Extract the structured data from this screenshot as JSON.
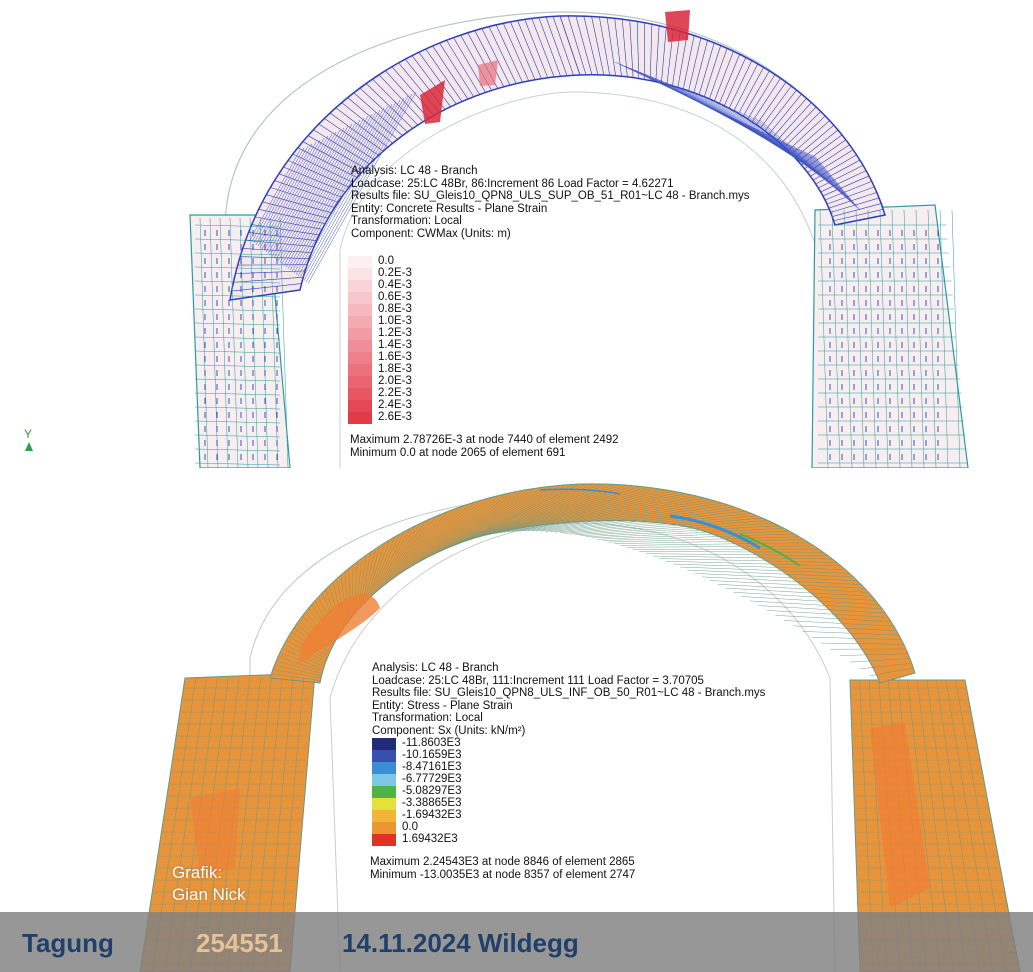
{
  "top_plot": {
    "info": [
      "Analysis: LC 48 - Branch",
      "Loadcase: 25:LC 48Br, 86:Increment 86 Load Factor = 4.62271",
      "Results file: SU_Gleis10_QPN8_ULS_SUP_OB_51_R01~LC 48 - Branch.mys",
      "Entity: Concrete Results - Plane Strain",
      "Transformation: Local",
      "Component: CWMax (Units: m)"
    ],
    "legend": [
      {
        "label": "0.0",
        "color": "#fdf0f1"
      },
      {
        "label": "0.2E-3",
        "color": "#fbe2e4"
      },
      {
        "label": "0.4E-3",
        "color": "#f9d4d7"
      },
      {
        "label": "0.6E-3",
        "color": "#f7c6ca"
      },
      {
        "label": "0.8E-3",
        "color": "#f5b8bd"
      },
      {
        "label": "1.0E-3",
        "color": "#f3aab0"
      },
      {
        "label": "1.2E-3",
        "color": "#f19ca3"
      },
      {
        "label": "1.4E-3",
        "color": "#ef8e96"
      },
      {
        "label": "1.6E-3",
        "color": "#ed8089"
      },
      {
        "label": "1.8E-3",
        "color": "#eb727c"
      },
      {
        "label": "2.0E-3",
        "color": "#e9646f"
      },
      {
        "label": "2.2E-3",
        "color": "#e75662"
      },
      {
        "label": "2.4E-3",
        "color": "#e54855"
      },
      {
        "label": "2.6E-3",
        "color": "#e33a48"
      }
    ],
    "maximum": "Maximum 2.78726E-3 at node 7440 of element 2492",
    "minimum": "Minimum 0.0 at node 2065 of element 691",
    "axis_label": "Y",
    "colors": {
      "mesh": "#2d9aa0",
      "arrows": "#2c3fb8",
      "crack": "#d8273a",
      "fill": "#f7eef0"
    }
  },
  "bottom_plot": {
    "info": [
      "Analysis: LC 48 - Branch",
      "Loadcase: 25:LC 48Br, 111:Increment 111 Load Factor = 3.70705",
      "Results file: SU_Gleis10_QPN8_ULS_INF_OB_50_R01~LC 48 - Branch.mys",
      "Entity: Stress - Plane Strain",
      "Transformation: Local",
      "Component: Sx (Units: kN/m²)"
    ],
    "legend": [
      {
        "label": "-11.8603E3",
        "color": "#232a7a"
      },
      {
        "label": "-10.1659E3",
        "color": "#3550b0"
      },
      {
        "label": "-8.47161E3",
        "color": "#3a8fd4"
      },
      {
        "label": "-6.77729E3",
        "color": "#7cc8e6"
      },
      {
        "label": "-5.08297E3",
        "color": "#4db24c"
      },
      {
        "label": "-3.38865E3",
        "color": "#e6e03a"
      },
      {
        "label": "-1.69432E3",
        "color": "#f2b53a"
      },
      {
        "label": "0.0",
        "color": "#eb9535"
      },
      {
        "label": "1.69432E3",
        "color": "#e2302a"
      }
    ],
    "maximum": "Maximum 2.24543E3 at node 8846 of element 2865",
    "minimum": "Minimum -13.0035E3 at node 8357 of element 2747",
    "colors": {
      "fill": "#e8943a",
      "mesh": "#6a9a86",
      "patch": "#ef7f35"
    }
  },
  "credit": [
    "Grafik:",
    "Gian Nick"
  ],
  "footer": {
    "event": "Tagung",
    "code": "254551",
    "date": "14.11.2024 Wildegg"
  }
}
